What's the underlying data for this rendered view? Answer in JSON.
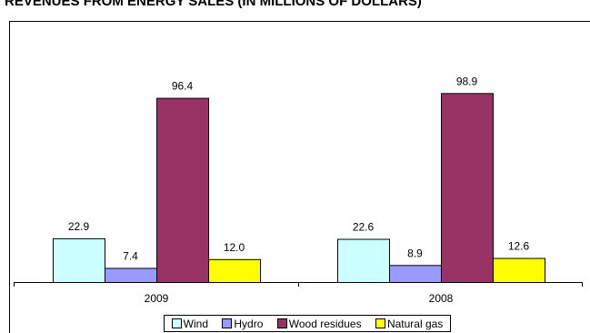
{
  "chart_data": {
    "type": "bar",
    "title": "REVENUES FROM ENERGY SALES (IN MILLIONS OF DOLLARS)",
    "categories": [
      "2009",
      "2008"
    ],
    "series": [
      {
        "name": "Wind",
        "values": [
          22.9,
          22.6
        ],
        "color": "#ccffff"
      },
      {
        "name": "Hydro",
        "values": [
          7.4,
          8.9
        ],
        "color": "#9999ff"
      },
      {
        "name": "Wood residues",
        "values": [
          96.4,
          98.9
        ],
        "color": "#993366"
      },
      {
        "name": "Natural gas",
        "values": [
          12.0,
          12.6
        ],
        "color": "#ffff00"
      }
    ],
    "value_labels": [
      [
        "22.9",
        "22.6"
      ],
      [
        "7.4",
        "8.9"
      ],
      [
        "96.4",
        "98.9"
      ],
      [
        "12.0",
        "12.6"
      ]
    ],
    "ylim": [
      0,
      100
    ],
    "grid": false,
    "legend_position": "bottom"
  }
}
